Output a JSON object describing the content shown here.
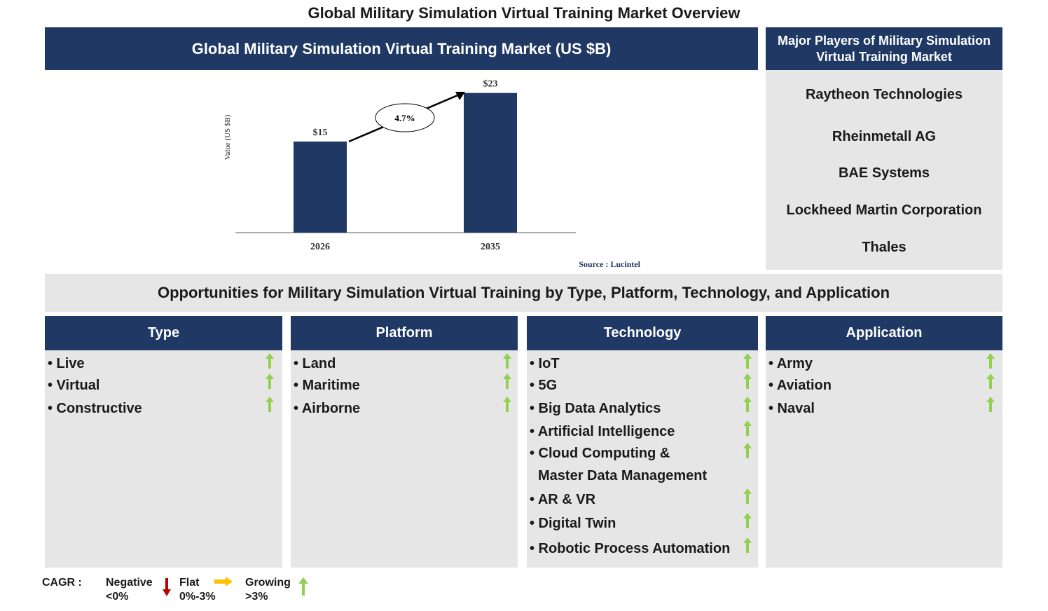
{
  "title": "Global Military Simulation Virtual Training Market Overview",
  "chart_banner": "Global Military Simulation Virtual Training Market (US $B)",
  "chart_data": {
    "type": "bar",
    "categories": [
      "2026",
      "2035"
    ],
    "values": [
      15,
      23
    ],
    "value_labels": [
      "$15",
      "$23"
    ],
    "ylabel": "Value (US $B)",
    "ylim": [
      0,
      26
    ],
    "cagr_label": "4.7%",
    "source": "Source : Lucintel",
    "bar_color": "#1f3864",
    "grid": false
  },
  "players": {
    "heading": "Major Players of Military Simulation Virtual Training Market",
    "items": [
      "Raytheon Technologies",
      "Rheinmetall AG",
      "BAE Systems",
      "Lockheed Martin Corporation",
      "Thales"
    ]
  },
  "opportunities_heading": "Opportunities for Military Simulation Virtual Training by Type, Platform, Technology, and Application",
  "columns": [
    {
      "heading": "Type",
      "items": [
        "• Live",
        "• Virtual",
        "• Constructive"
      ]
    },
    {
      "heading": "Platform",
      "items": [
        "• Land",
        "• Maritime",
        "• Airborne"
      ]
    },
    {
      "heading": "Technology",
      "items": [
        "• IoT",
        "• 5G",
        "• Big Data Analytics",
        "• Artificial Intelligence",
        "• Cloud Computing &",
        "Master Data Management",
        "• AR & VR",
        "• Digital Twin",
        "• Robotic Process Automation"
      ]
    },
    {
      "heading": "Application",
      "items": [
        "• Army",
        "• Aviation",
        "• Naval"
      ]
    }
  ],
  "legend": {
    "cagr": "CAGR :",
    "negative": "Negative",
    "negative_range": "<0%",
    "flat": "Flat",
    "flat_range": "0%-3%",
    "growing": "Growing",
    "growing_range": ">3%"
  },
  "colors": {
    "navy": "#1f3864",
    "panel_gray": "#e7e6e6",
    "growing": "#92d050",
    "flat": "#ffc000",
    "negative": "#c00000",
    "source_text": "#1f3864"
  }
}
